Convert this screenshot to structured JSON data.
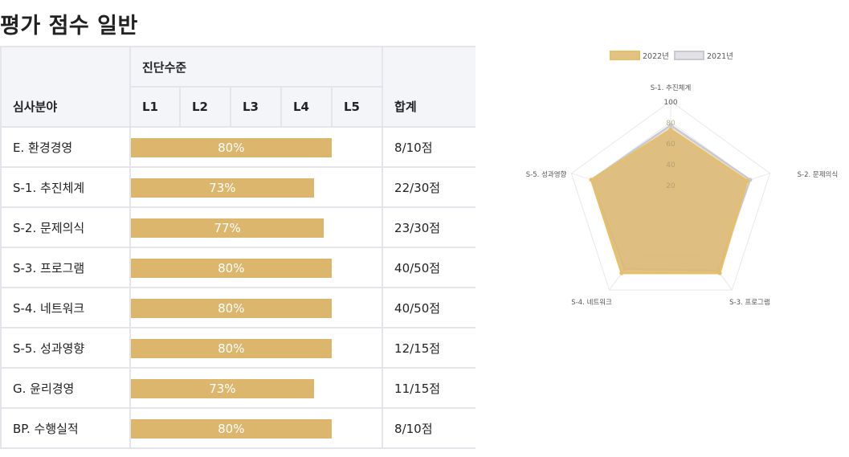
{
  "page": {
    "title": "평가 점수 일반"
  },
  "table": {
    "header_area": "심사분야",
    "header_level": "진단수준",
    "levels": [
      "L1",
      "L2",
      "L3",
      "L4",
      "L5"
    ],
    "header_total": "합계",
    "rows": [
      {
        "area": "E. 환경경영",
        "percent": 80,
        "percent_label": "80%",
        "total": "8/10점"
      },
      {
        "area": "S-1. 추진체계",
        "percent": 73,
        "percent_label": "73%",
        "total": "22/30점"
      },
      {
        "area": "S-2. 문제의식",
        "percent": 77,
        "percent_label": "77%",
        "total": "23/30점"
      },
      {
        "area": "S-3. 프로그램",
        "percent": 80,
        "percent_label": "80%",
        "total": "40/50점"
      },
      {
        "area": "S-4. 네트워크",
        "percent": 80,
        "percent_label": "80%",
        "total": "40/50점"
      },
      {
        "area": "S-5. 성과영향",
        "percent": 80,
        "percent_label": "80%",
        "total": "12/15점"
      },
      {
        "area": "G. 윤리경영",
        "percent": 73,
        "percent_label": "73%",
        "total": "11/15점"
      },
      {
        "area": "BP. 수행실적",
        "percent": 80,
        "percent_label": "80%",
        "total": "8/10점"
      }
    ]
  },
  "chart_data": {
    "type": "radar",
    "categories": [
      "S-1. 추진체계",
      "S-2. 문제의식",
      "S-3. 프로그램",
      "S-4. 네트워크",
      "S-5. 성과영향"
    ],
    "series": [
      {
        "name": "2022년",
        "values": [
          73,
          77,
          80,
          80,
          80
        ],
        "fill": "#ddb96e",
        "stroke": "#e6bf66"
      },
      {
        "name": "2021년",
        "values": [
          77,
          80,
          77,
          75,
          80
        ],
        "fill": "#cfcfd6",
        "stroke": "#c9c9d0"
      }
    ],
    "rlim": [
      0,
      100
    ],
    "ticks": [
      "20",
      "40",
      "60",
      "80",
      "100"
    ],
    "legend_position": "top",
    "grid": true
  }
}
